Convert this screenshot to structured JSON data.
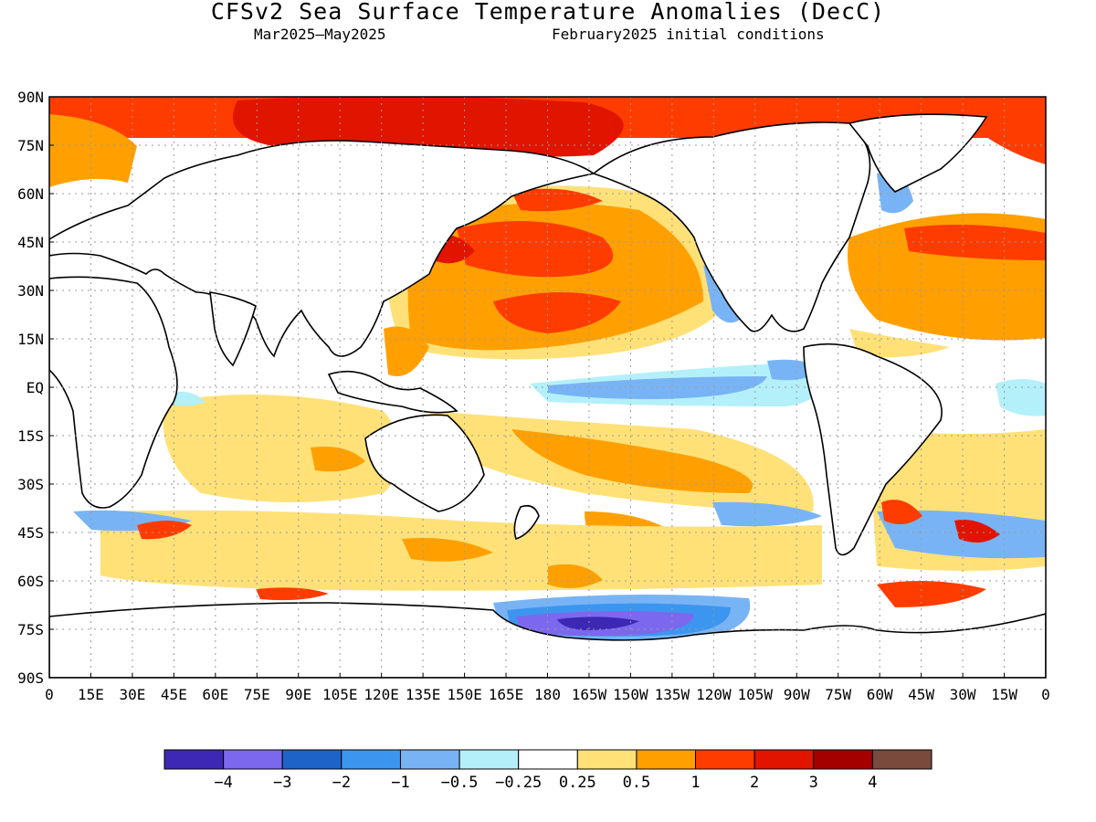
{
  "header": {
    "title": "CFSv2 Sea Surface Temperature Anomalies (DecC)",
    "period": "Mar2025—May2025",
    "initial_conditions": "February2025 initial conditions"
  },
  "map": {
    "lat_labels": [
      "90N",
      "75N",
      "60N",
      "45N",
      "30N",
      "15N",
      "EQ",
      "15S",
      "30S",
      "45S",
      "60S",
      "75S",
      "90S"
    ],
    "lon_labels": [
      "0",
      "15E",
      "30E",
      "45E",
      "60E",
      "75E",
      "90E",
      "105E",
      "120E",
      "135E",
      "150E",
      "165E",
      "180",
      "165W",
      "150W",
      "135W",
      "120W",
      "105W",
      "90W",
      "75W",
      "60W",
      "45W",
      "30W",
      "15W",
      "0"
    ],
    "land_color": "#ffffff",
    "coast_color": "#000000"
  },
  "colorbar": {
    "colors": [
      "#3c28b4",
      "#7b68ee",
      "#1e64c8",
      "#3c96f0",
      "#78b4f5",
      "#b4f0fa",
      "#ffffff",
      "#ffe178",
      "#ffa000",
      "#ff3c00",
      "#e11400",
      "#a50000",
      "#7a4a3c"
    ],
    "labels": [
      "-4",
      "-3",
      "-2",
      "-1",
      "-0.5",
      "-0.25",
      "0.25",
      "0.5",
      "1",
      "2",
      "3",
      "4"
    ]
  }
}
